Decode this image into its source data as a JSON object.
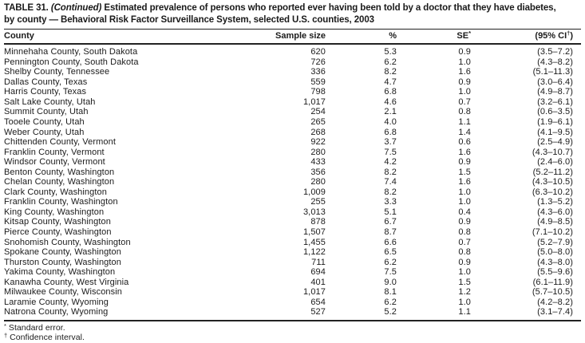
{
  "title": {
    "table_label": "TABLE 31.",
    "continued": "(Continued)",
    "line1_rest": "Estimated prevalence of persons who reported ever having been told by a doctor that they have diabetes,",
    "line2": "by county — Behavioral Risk Factor Surveillance System, selected U.S. counties, 2003"
  },
  "table": {
    "headers": {
      "county": "County",
      "sample_size": "Sample size",
      "percent": "%",
      "se_label": "SE",
      "se_marker": "*",
      "ci_prefix": "(95% CI",
      "ci_marker": "†",
      "ci_suffix": ")"
    },
    "rows": [
      {
        "county": "Minnehaha County, South Dakota",
        "n": "620",
        "pct": "5.3",
        "se": "0.9",
        "ci": "(3.5–7.2)"
      },
      {
        "county": "Pennington County, South Dakota",
        "n": "726",
        "pct": "6.2",
        "se": "1.0",
        "ci": "(4.3–8.2)"
      },
      {
        "county": "Shelby County, Tennessee",
        "n": "336",
        "pct": "8.2",
        "se": "1.6",
        "ci": "(5.1–11.3)"
      },
      {
        "county": "Dallas County, Texas",
        "n": "559",
        "pct": "4.7",
        "se": "0.9",
        "ci": "(3.0–6.4)"
      },
      {
        "county": "Harris County, Texas",
        "n": "798",
        "pct": "6.8",
        "se": "1.0",
        "ci": "(4.9–8.7)"
      },
      {
        "county": "Salt Lake County, Utah",
        "n": "1,017",
        "pct": "4.6",
        "se": "0.7",
        "ci": "(3.2–6.1)"
      },
      {
        "county": "Summit County, Utah",
        "n": "254",
        "pct": "2.1",
        "se": "0.8",
        "ci": "(0.6–3.5)"
      },
      {
        "county": "Tooele County, Utah",
        "n": "265",
        "pct": "4.0",
        "se": "1.1",
        "ci": "(1.9–6.1)"
      },
      {
        "county": "Weber County, Utah",
        "n": "268",
        "pct": "6.8",
        "se": "1.4",
        "ci": "(4.1–9.5)"
      },
      {
        "county": "Chittenden County, Vermont",
        "n": "922",
        "pct": "3.7",
        "se": "0.6",
        "ci": "(2.5–4.9)"
      },
      {
        "county": "Franklin County, Vermont",
        "n": "280",
        "pct": "7.5",
        "se": "1.6",
        "ci": "(4.3–10.7)"
      },
      {
        "county": "Windsor County, Vermont",
        "n": "433",
        "pct": "4.2",
        "se": "0.9",
        "ci": "(2.4–6.0)"
      },
      {
        "county": "Benton County, Washington",
        "n": "356",
        "pct": "8.2",
        "se": "1.5",
        "ci": "(5.2–11.2)"
      },
      {
        "county": "Chelan County, Washington",
        "n": "280",
        "pct": "7.4",
        "se": "1.6",
        "ci": "(4.3–10.5)"
      },
      {
        "county": "Clark County, Washington",
        "n": "1,009",
        "pct": "8.2",
        "se": "1.0",
        "ci": "(6.3–10.2)"
      },
      {
        "county": "Franklin County, Washington",
        "n": "255",
        "pct": "3.3",
        "se": "1.0",
        "ci": "(1.3–5.2)"
      },
      {
        "county": "King County, Washington",
        "n": "3,013",
        "pct": "5.1",
        "se": "0.4",
        "ci": "(4.3–6.0)"
      },
      {
        "county": "Kitsap County, Washington",
        "n": "878",
        "pct": "6.7",
        "se": "0.9",
        "ci": "(4.9–8.5)"
      },
      {
        "county": "Pierce County, Washington",
        "n": "1,507",
        "pct": "8.7",
        "se": "0.8",
        "ci": "(7.1–10.2)"
      },
      {
        "county": "Snohomish County, Washington",
        "n": "1,455",
        "pct": "6.6",
        "se": "0.7",
        "ci": "(5.2–7.9)"
      },
      {
        "county": "Spokane County, Washington",
        "n": "1,122",
        "pct": "6.5",
        "se": "0.8",
        "ci": "(5.0–8.0)"
      },
      {
        "county": "Thurston County, Washington",
        "n": "711",
        "pct": "6.2",
        "se": "0.9",
        "ci": "(4.3–8.0)"
      },
      {
        "county": "Yakima County, Washington",
        "n": "694",
        "pct": "7.5",
        "se": "1.0",
        "ci": "(5.5–9.6)"
      },
      {
        "county": "Kanawha County, West Virginia",
        "n": "401",
        "pct": "9.0",
        "se": "1.5",
        "ci": "(6.1–11.9)"
      },
      {
        "county": "Milwaukee County, Wisconsin",
        "n": "1,017",
        "pct": "8.1",
        "se": "1.2",
        "ci": "(5.7–10.5)"
      },
      {
        "county": "Laramie County, Wyoming",
        "n": "654",
        "pct": "6.2",
        "se": "1.0",
        "ci": "(4.2–8.2)"
      },
      {
        "county": "Natrona County, Wyoming",
        "n": "527",
        "pct": "5.2",
        "se": "1.1",
        "ci": "(3.1–7.4)"
      }
    ]
  },
  "footnotes": [
    {
      "marker": "*",
      "text": "Standard error."
    },
    {
      "marker": "†",
      "text": "Confidence interval."
    }
  ],
  "colors": {
    "text": "#1b1b1b",
    "rule": "#222222",
    "background": "#ffffff"
  }
}
